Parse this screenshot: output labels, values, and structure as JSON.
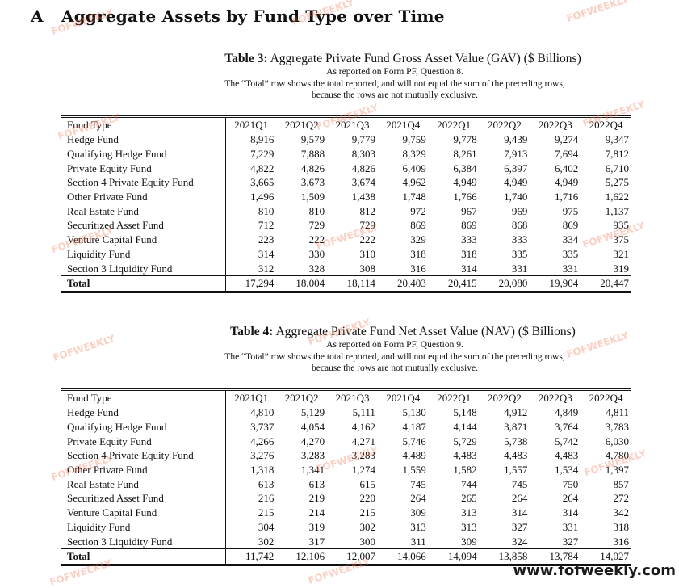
{
  "section": {
    "letter": "A",
    "title": "Aggregate Assets by Fund Type over Time"
  },
  "quarters": [
    "2021Q1",
    "2021Q2",
    "2021Q3",
    "2021Q4",
    "2022Q1",
    "2022Q2",
    "2022Q3",
    "2022Q4"
  ],
  "fund_type_header": "Fund Type",
  "tables": [
    {
      "label": "Table 3:",
      "title": "Aggregate Private Fund Gross Asset Value (GAV) ($ Billions)",
      "sub1": "As reported on Form PF, Question 8.",
      "sub2": "The “Total” row shows the total reported, and will not equal the sum of the preceding rows,",
      "sub3": "because the rows are not mutually exclusive.",
      "rows": [
        {
          "name": "Hedge Fund",
          "values": [
            "8,916",
            "9,579",
            "9,779",
            "9,759",
            "9,778",
            "9,439",
            "9,274",
            "9,347"
          ]
        },
        {
          "name": "Qualifying Hedge Fund",
          "values": [
            "7,229",
            "7,888",
            "8,303",
            "8,329",
            "8,261",
            "7,913",
            "7,694",
            "7,812"
          ]
        },
        {
          "name": "Private Equity Fund",
          "values": [
            "4,822",
            "4,826",
            "4,826",
            "6,409",
            "6,384",
            "6,397",
            "6,402",
            "6,710"
          ]
        },
        {
          "name": "Section 4 Private Equity Fund",
          "values": [
            "3,665",
            "3,673",
            "3,674",
            "4,962",
            "4,949",
            "4,949",
            "4,949",
            "5,275"
          ]
        },
        {
          "name": "Other Private Fund",
          "values": [
            "1,496",
            "1,509",
            "1,438",
            "1,748",
            "1,766",
            "1,740",
            "1,716",
            "1,622"
          ]
        },
        {
          "name": "Real Estate Fund",
          "values": [
            "810",
            "810",
            "812",
            "972",
            "967",
            "969",
            "975",
            "1,137"
          ]
        },
        {
          "name": "Securitized Asset Fund",
          "values": [
            "712",
            "729",
            "729",
            "869",
            "869",
            "868",
            "869",
            "935"
          ]
        },
        {
          "name": "Venture Capital Fund",
          "values": [
            "223",
            "222",
            "222",
            "329",
            "333",
            "333",
            "334",
            "375"
          ]
        },
        {
          "name": "Liquidity Fund",
          "values": [
            "314",
            "330",
            "310",
            "318",
            "318",
            "335",
            "335",
            "321"
          ]
        },
        {
          "name": "Section 3 Liquidity Fund",
          "values": [
            "312",
            "328",
            "308",
            "316",
            "314",
            "331",
            "331",
            "319"
          ]
        }
      ],
      "total": {
        "name": "Total",
        "values": [
          "17,294",
          "18,004",
          "18,114",
          "20,403",
          "20,415",
          "20,080",
          "19,904",
          "20,447"
        ]
      }
    },
    {
      "label": "Table 4:",
      "title": "Aggregate Private Fund Net Asset Value (NAV) ($ Billions)",
      "sub1": "As reported on Form PF, Question 9.",
      "sub2": "The “Total” row shows the total reported, and will not equal the sum of the preceding rows,",
      "sub3": "because the rows are not mutually exclusive.",
      "rows": [
        {
          "name": "Hedge Fund",
          "values": [
            "4,810",
            "5,129",
            "5,111",
            "5,130",
            "5,148",
            "4,912",
            "4,849",
            "4,811"
          ]
        },
        {
          "name": "Qualifying Hedge Fund",
          "values": [
            "3,737",
            "4,054",
            "4,162",
            "4,187",
            "4,144",
            "3,871",
            "3,764",
            "3,783"
          ]
        },
        {
          "name": "Private Equity Fund",
          "values": [
            "4,266",
            "4,270",
            "4,271",
            "5,746",
            "5,729",
            "5,738",
            "5,742",
            "6,030"
          ]
        },
        {
          "name": "Section 4 Private Equity Fund",
          "values": [
            "3,276",
            "3,283",
            "3,283",
            "4,489",
            "4,483",
            "4,483",
            "4,483",
            "4,780"
          ]
        },
        {
          "name": "Other Private Fund",
          "values": [
            "1,318",
            "1,341",
            "1,274",
            "1,559",
            "1,582",
            "1,557",
            "1,534",
            "1,397"
          ]
        },
        {
          "name": "Real Estate Fund",
          "values": [
            "613",
            "613",
            "615",
            "745",
            "744",
            "745",
            "750",
            "857"
          ]
        },
        {
          "name": "Securitized Asset Fund",
          "values": [
            "216",
            "219",
            "220",
            "264",
            "265",
            "264",
            "264",
            "272"
          ]
        },
        {
          "name": "Venture Capital Fund",
          "values": [
            "215",
            "214",
            "215",
            "309",
            "313",
            "314",
            "314",
            "342"
          ]
        },
        {
          "name": "Liquidity Fund",
          "values": [
            "304",
            "319",
            "302",
            "313",
            "313",
            "327",
            "331",
            "318"
          ]
        },
        {
          "name": "Section 3 Liquidity Fund",
          "values": [
            "302",
            "317",
            "300",
            "311",
            "309",
            "324",
            "327",
            "316"
          ]
        }
      ],
      "total": {
        "name": "Total",
        "values": [
          "11,742",
          "12,106",
          "12,007",
          "14,066",
          "14,094",
          "13,858",
          "13,784",
          "14,027"
        ]
      }
    }
  ],
  "watermark_text": "FOFWEEKLY",
  "site_text": "www.fofweekly.com",
  "colors": {
    "watermark": "#f0785a",
    "text": "#111111"
  }
}
